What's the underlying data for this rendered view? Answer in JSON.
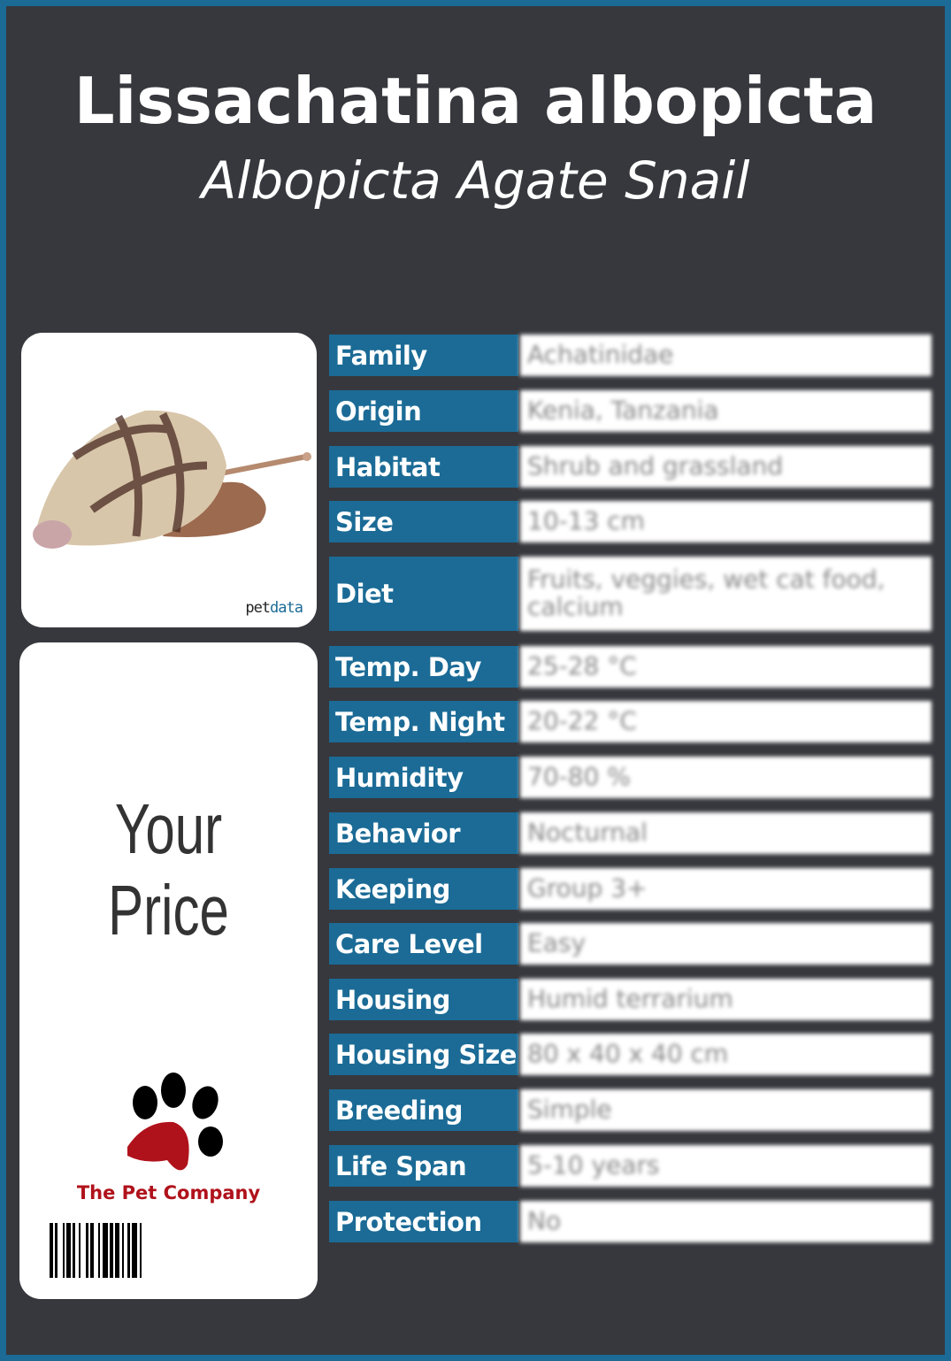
{
  "header": {
    "title": "Lissachatina albopicta",
    "subtitle": "Albopicta Agate Snail"
  },
  "photo": {
    "logo_pet": "pet",
    "logo_data": "data"
  },
  "price": {
    "label": "Your Price",
    "company": "The Pet Company"
  },
  "colors": {
    "accent": "#1b6b96",
    "background": "#37383d",
    "company": "#b0121b"
  },
  "rows": [
    {
      "label": "Family",
      "value": "Achatinidae"
    },
    {
      "label": "Origin",
      "value": "Kenia, Tanzania"
    },
    {
      "label": "Habitat",
      "value": "Shrub and grassland"
    },
    {
      "label": "Size",
      "value": "10-13 cm"
    },
    {
      "label": "Diet",
      "value": "Fruits, veggies, wet cat food, calcium"
    },
    {
      "label": "Temp. Day",
      "value": "25-28 °C"
    },
    {
      "label": "Temp. Night",
      "value": "20-22 °C"
    },
    {
      "label": "Humidity",
      "value": "70-80 %"
    },
    {
      "label": "Behavior",
      "value": "Nocturnal"
    },
    {
      "label": "Keeping",
      "value": "Group 3+"
    },
    {
      "label": "Care Level",
      "value": "Easy"
    },
    {
      "label": "Housing",
      "value": "Humid terrarium"
    },
    {
      "label": "Housing Size",
      "value": "80 x 40 x 40 cm"
    },
    {
      "label": "Breeding",
      "value": "Simple"
    },
    {
      "label": "Life Span",
      "value": "5-10 years"
    },
    {
      "label": "Protection",
      "value": "No"
    }
  ]
}
